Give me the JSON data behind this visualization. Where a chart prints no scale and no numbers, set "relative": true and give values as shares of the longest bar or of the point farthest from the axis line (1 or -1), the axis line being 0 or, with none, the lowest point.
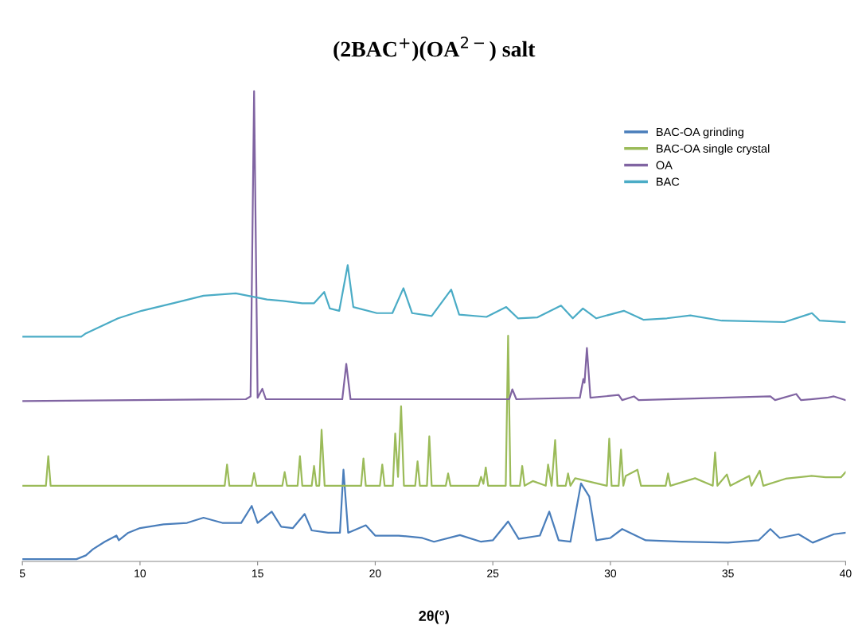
{
  "chart_data": {
    "type": "line",
    "title": "(2BAC$^{+}$)(OA$^{2−}$) salt",
    "xlabel": "2θ(°)",
    "relative": true,
    "xlim": [
      5,
      40
    ],
    "xticks": [
      5,
      10,
      15,
      20,
      25,
      30,
      35,
      40
    ],
    "tick_labels": "x",
    "grid": false,
    "legend": "top right",
    "series": [
      {
        "name": "BAC-OA grinding",
        "color": "#4a7ebb",
        "x": [
          5,
          7.3,
          7.7,
          8.0,
          8.5,
          9.0,
          9.1,
          9.5,
          10,
          11,
          12,
          12.7,
          13.5,
          14.3,
          14.75,
          15.0,
          15.6,
          16.0,
          16.5,
          17.0,
          17.3,
          18.0,
          18.5,
          18.65,
          18.85,
          19.6,
          20.0,
          21.0,
          22.0,
          22.5,
          23.6,
          24.5,
          25.0,
          25.65,
          26.1,
          27.0,
          27.4,
          27.8,
          28.3,
          28.75,
          29.1,
          29.4,
          30.0,
          30.5,
          31.5,
          33,
          35,
          36.3,
          36.8,
          37.2,
          38,
          38.6,
          39.5,
          40
        ],
        "values": [
          0.005,
          0.005,
          0.013,
          0.026,
          0.042,
          0.055,
          0.045,
          0.061,
          0.071,
          0.079,
          0.082,
          0.093,
          0.082,
          0.082,
          0.118,
          0.082,
          0.106,
          0.074,
          0.071,
          0.101,
          0.066,
          0.061,
          0.061,
          0.195,
          0.061,
          0.077,
          0.055,
          0.055,
          0.05,
          0.042,
          0.056,
          0.042,
          0.045,
          0.085,
          0.048,
          0.055,
          0.106,
          0.045,
          0.042,
          0.166,
          0.138,
          0.045,
          0.05,
          0.069,
          0.045,
          0.042,
          0.04,
          0.045,
          0.069,
          0.05,
          0.058,
          0.04,
          0.058,
          0.061
        ]
      },
      {
        "name": "BAC-OA single crystal",
        "color": "#9bbb59",
        "x": [
          5,
          6.0,
          6.1,
          6.2,
          13.6,
          13.7,
          13.8,
          14.75,
          14.85,
          14.95,
          16.05,
          16.15,
          16.25,
          16.7,
          16.8,
          16.9,
          17.3,
          17.4,
          17.5,
          17.62,
          17.72,
          17.85,
          19.4,
          19.5,
          19.6,
          20.2,
          20.3,
          20.4,
          20.75,
          20.85,
          20.97,
          21.1,
          21.22,
          21.7,
          21.8,
          21.9,
          22.2,
          22.3,
          22.4,
          23.0,
          23.1,
          23.2,
          24.4,
          24.5,
          24.6,
          24.7,
          24.8,
          25.55,
          25.65,
          25.75,
          26.15,
          26.25,
          26.35,
          26.7,
          27.25,
          27.35,
          27.5,
          27.65,
          27.75,
          28.1,
          28.2,
          28.3,
          28.5,
          29.85,
          29.95,
          30.05,
          30.35,
          30.45,
          30.55,
          30.65,
          31.15,
          31.3,
          32.35,
          32.45,
          32.55,
          33.6,
          34.35,
          34.45,
          34.55,
          34.95,
          35.1,
          35.9,
          36.0,
          36.35,
          36.5,
          37.45,
          38.55,
          39.15,
          39.8,
          40
        ],
        "values": [
          0.161,
          0.161,
          0.224,
          0.161,
          0.161,
          0.206,
          0.161,
          0.161,
          0.188,
          0.161,
          0.161,
          0.19,
          0.161,
          0.161,
          0.224,
          0.161,
          0.161,
          0.203,
          0.161,
          0.161,
          0.28,
          0.161,
          0.161,
          0.219,
          0.161,
          0.161,
          0.206,
          0.161,
          0.161,
          0.272,
          0.18,
          0.33,
          0.161,
          0.161,
          0.213,
          0.161,
          0.161,
          0.266,
          0.161,
          0.161,
          0.187,
          0.161,
          0.161,
          0.18,
          0.165,
          0.2,
          0.161,
          0.161,
          0.48,
          0.161,
          0.161,
          0.203,
          0.161,
          0.171,
          0.161,
          0.206,
          0.161,
          0.258,
          0.161,
          0.161,
          0.187,
          0.161,
          0.177,
          0.161,
          0.261,
          0.161,
          0.161,
          0.238,
          0.161,
          0.182,
          0.195,
          0.161,
          0.161,
          0.187,
          0.161,
          0.177,
          0.161,
          0.232,
          0.161,
          0.185,
          0.161,
          0.182,
          0.161,
          0.193,
          0.161,
          0.176,
          0.182,
          0.179,
          0.179,
          0.19
        ]
      },
      {
        "name": "OA",
        "color": "#8064a2",
        "x": [
          5,
          14.5,
          14.7,
          14.85,
          15.0,
          15.2,
          15.35,
          18.6,
          18.77,
          18.95,
          25.7,
          25.83,
          26.0,
          28.7,
          28.85,
          28.9,
          29.0,
          29.15,
          30.35,
          30.5,
          31.0,
          31.2,
          36.8,
          37.0,
          37.9,
          38.1,
          39.2,
          39.5,
          40
        ],
        "values": [
          0.341,
          0.345,
          0.351,
          1.0,
          0.348,
          0.367,
          0.345,
          0.345,
          0.42,
          0.345,
          0.345,
          0.366,
          0.345,
          0.348,
          0.388,
          0.38,
          0.454,
          0.348,
          0.354,
          0.343,
          0.351,
          0.343,
          0.351,
          0.343,
          0.356,
          0.343,
          0.348,
          0.351,
          0.343
        ]
      },
      {
        "name": "BAC",
        "color": "#4bacc6",
        "x": [
          5,
          7.5,
          7.7,
          9.07,
          10.07,
          11.4,
          12.7,
          14.07,
          15.4,
          16.07,
          16.9,
          17.4,
          17.83,
          18.07,
          18.47,
          18.83,
          19.07,
          20.07,
          20.73,
          21.2,
          21.57,
          22.4,
          23.23,
          23.57,
          24.73,
          25.57,
          26.07,
          26.9,
          27.9,
          28.4,
          28.83,
          29.4,
          30.57,
          31.4,
          32.4,
          33.4,
          34.73,
          37.4,
          38.57,
          38.9,
          40
        ],
        "values": [
          0.478,
          0.478,
          0.485,
          0.517,
          0.533,
          0.549,
          0.565,
          0.57,
          0.557,
          0.554,
          0.549,
          0.549,
          0.573,
          0.538,
          0.533,
          0.63,
          0.541,
          0.528,
          0.528,
          0.581,
          0.528,
          0.522,
          0.578,
          0.525,
          0.52,
          0.541,
          0.517,
          0.519,
          0.544,
          0.517,
          0.538,
          0.517,
          0.533,
          0.514,
          0.517,
          0.523,
          0.512,
          0.509,
          0.528,
          0.512,
          0.509
        ]
      }
    ]
  }
}
